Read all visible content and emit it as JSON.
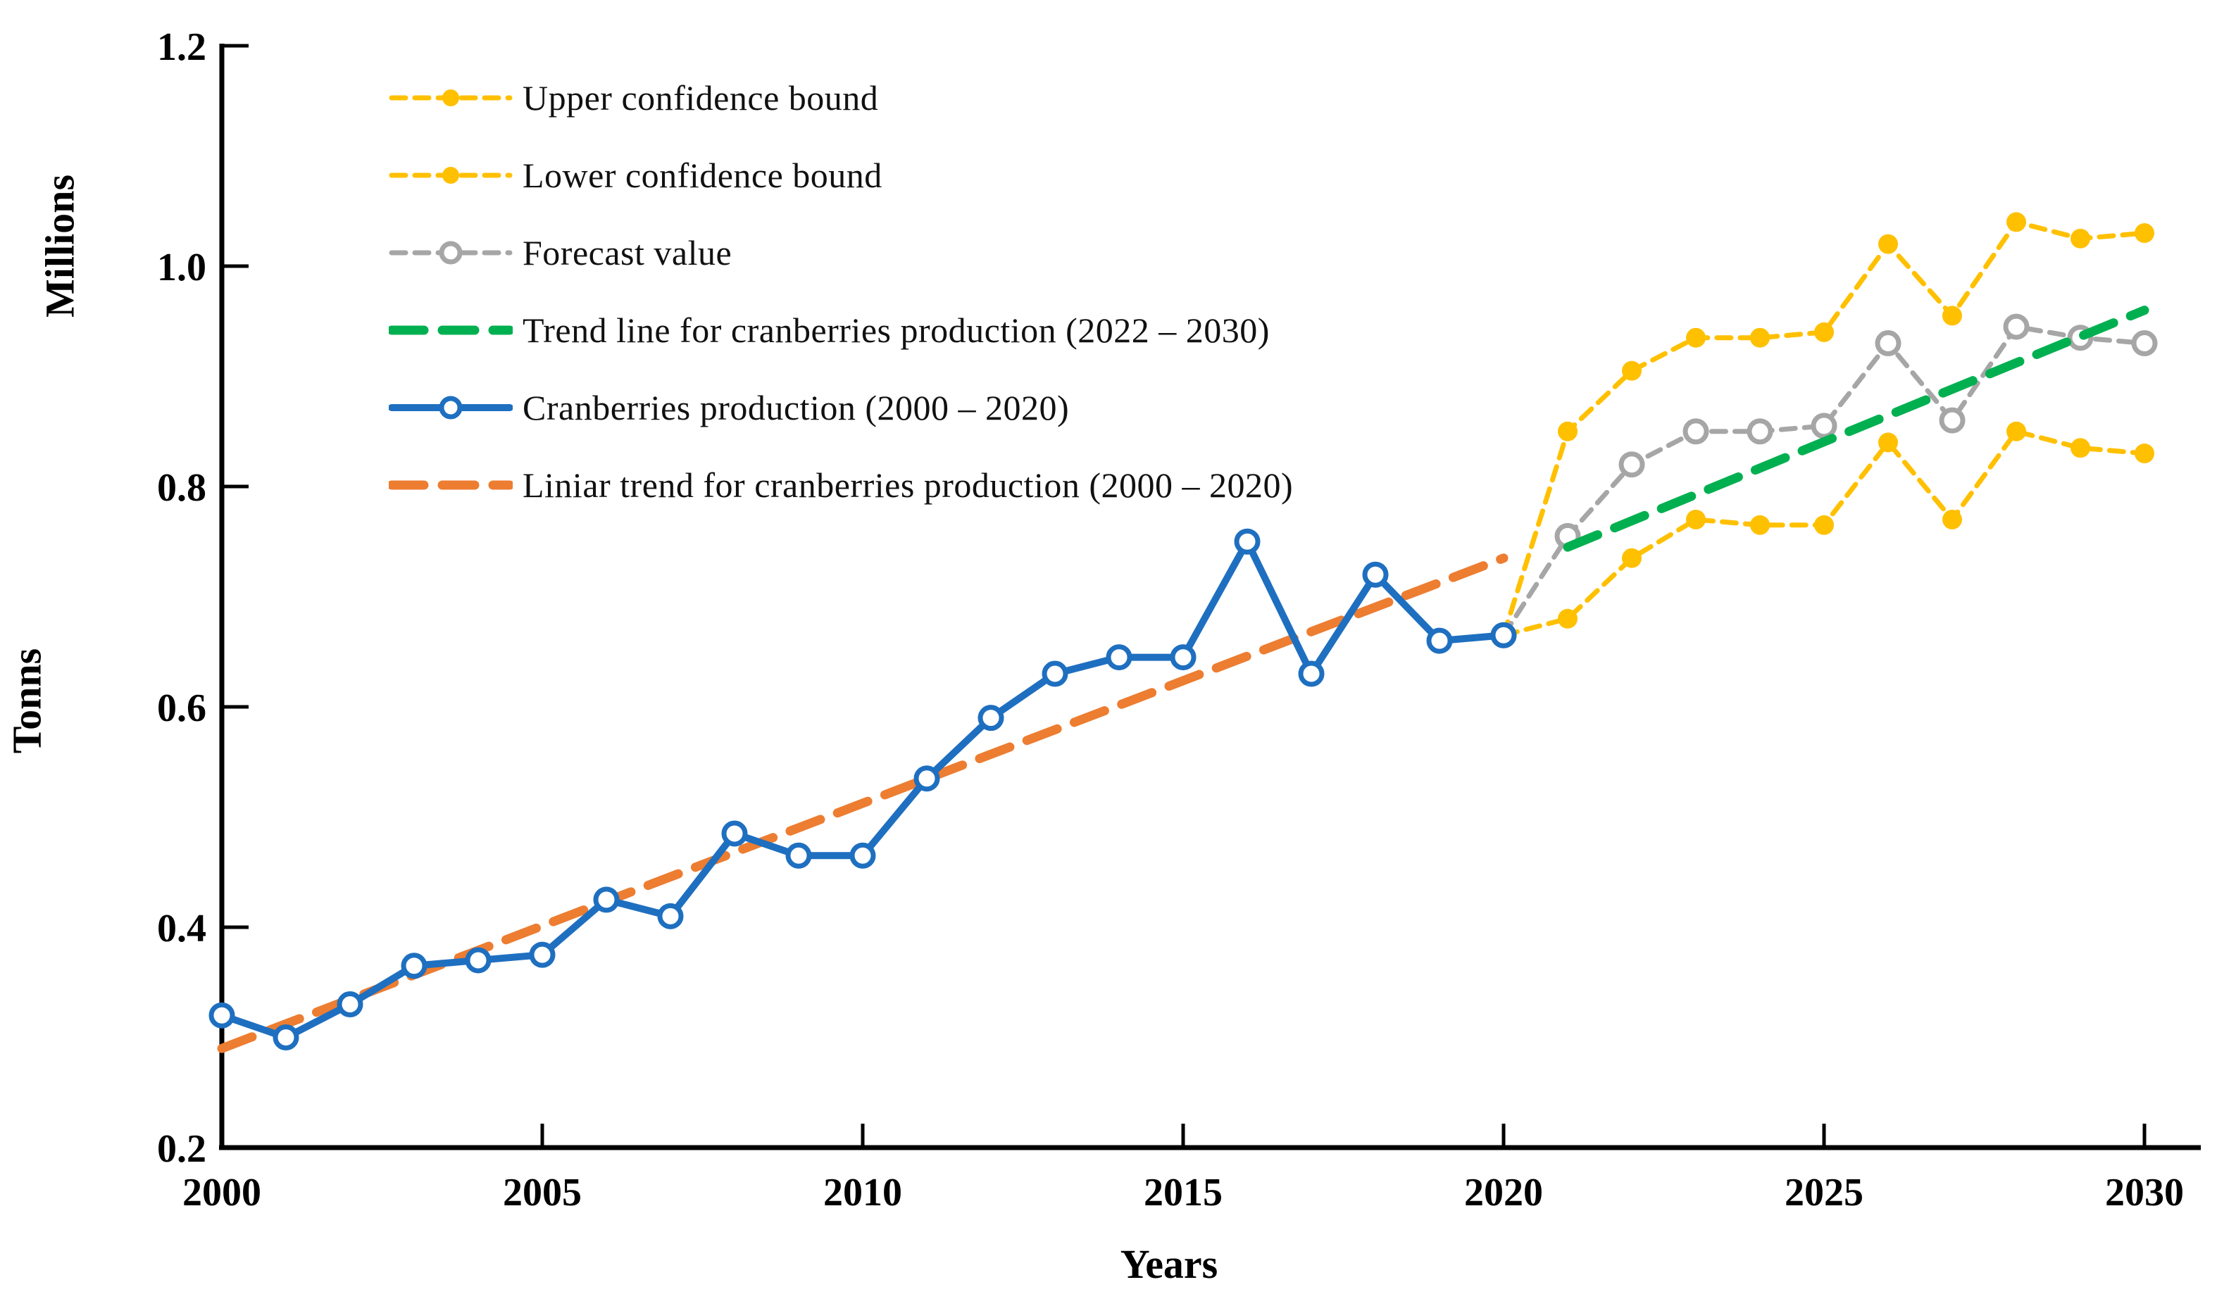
{
  "chart_data": {
    "type": "line",
    "title": "",
    "xlabel": "Years",
    "ylabel_unit": "Millions",
    "ylabel_measure": "Tonns",
    "xlim": [
      2000,
      2030
    ],
    "ylim": [
      0.2,
      1.2
    ],
    "grid": false,
    "legend_position": "top-left-inside",
    "x_ticks": [
      "2000",
      "2005",
      "2010",
      "2015",
      "2020",
      "2025",
      "2030"
    ],
    "y_ticks": [
      "1.2",
      "1.0",
      "0.8",
      "0.6",
      "0.4",
      "0.2"
    ],
    "y_tick_values": [
      1.2,
      1.0,
      0.8,
      0.6,
      0.4,
      0.2
    ],
    "x_tick_values": [
      2000,
      2005,
      2010,
      2015,
      2020,
      2025,
      2030
    ],
    "series": [
      {
        "name": "Upper confidence bound",
        "color": "#FFC000",
        "line": "dashed",
        "marker": "filled",
        "x": [
          2020,
          2021,
          2022,
          2023,
          2024,
          2025,
          2026,
          2027,
          2028,
          2029,
          2030
        ],
        "values": [
          0.665,
          0.85,
          0.905,
          0.935,
          0.935,
          0.94,
          1.02,
          0.955,
          1.04,
          1.025,
          1.03
        ]
      },
      {
        "name": "Lower confidence bound",
        "color": "#FFC000",
        "line": "dashed",
        "marker": "filled",
        "x": [
          2020,
          2021,
          2022,
          2023,
          2024,
          2025,
          2026,
          2027,
          2028,
          2029,
          2030
        ],
        "values": [
          0.665,
          0.68,
          0.735,
          0.77,
          0.765,
          0.765,
          0.84,
          0.77,
          0.85,
          0.835,
          0.83
        ]
      },
      {
        "name": "Forecast value",
        "color": "#A6A6A6",
        "line": "dashed",
        "marker": "open",
        "x": [
          2020,
          2021,
          2022,
          2023,
          2024,
          2025,
          2026,
          2027,
          2028,
          2029,
          2030
        ],
        "values": [
          0.665,
          0.755,
          0.82,
          0.85,
          0.85,
          0.855,
          0.93,
          0.86,
          0.945,
          0.935,
          0.93
        ]
      },
      {
        "name": "Trend line for cranberries production (2022 – 2030)",
        "color": "#00B050",
        "line": "dashed-bold",
        "marker": "none",
        "x": [
          2021,
          2030
        ],
        "values": [
          0.745,
          0.96
        ]
      },
      {
        "name": "Cranberries production (2000 – 2020)",
        "color": "#1E6FC0",
        "line": "solid",
        "marker": "open",
        "x": [
          2000,
          2001,
          2002,
          2003,
          2004,
          2005,
          2006,
          2007,
          2008,
          2009,
          2010,
          2011,
          2012,
          2013,
          2014,
          2015,
          2016,
          2017,
          2018,
          2019,
          2020
        ],
        "values": [
          0.32,
          0.3,
          0.33,
          0.365,
          0.37,
          0.375,
          0.425,
          0.41,
          0.485,
          0.465,
          0.465,
          0.535,
          0.59,
          0.63,
          0.645,
          0.645,
          0.75,
          0.63,
          0.72,
          0.66,
          0.665
        ]
      },
      {
        "name": "Liniar trend for cranberries production (2000 – 2020)",
        "color": "#ED7D31",
        "line": "dashed-bold",
        "marker": "none",
        "x": [
          2000,
          2020
        ],
        "values": [
          0.29,
          0.735
        ]
      }
    ]
  }
}
